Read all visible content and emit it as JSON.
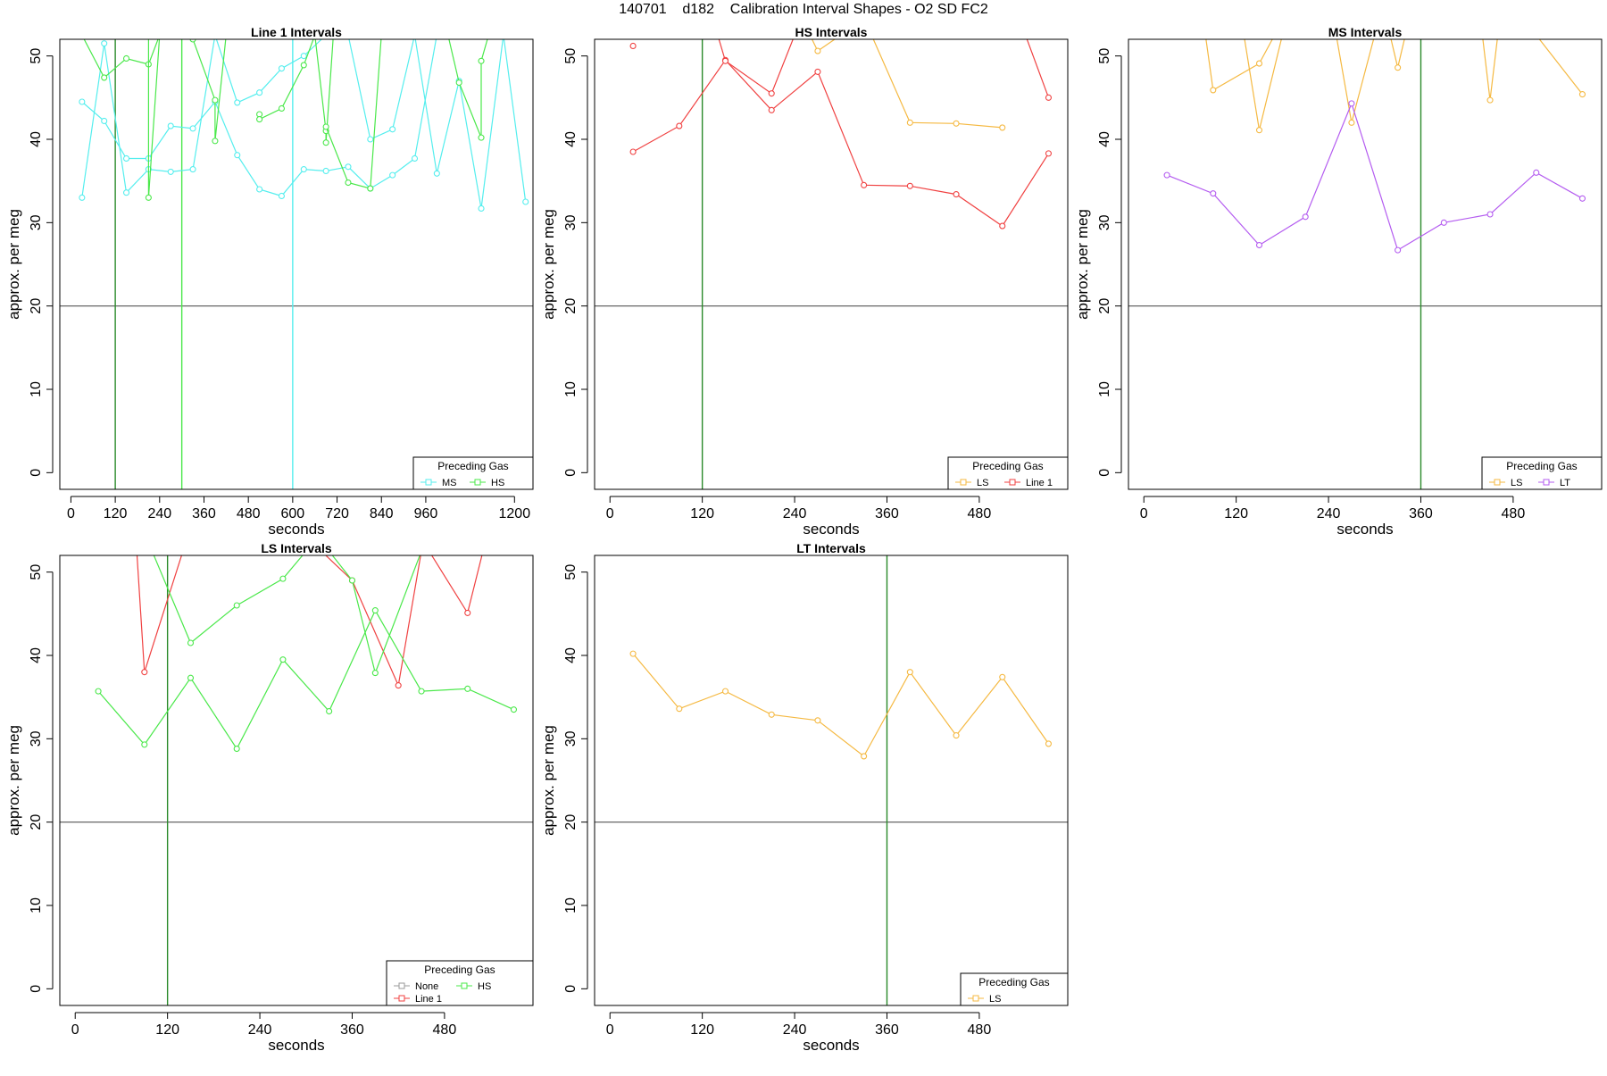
{
  "figure": {
    "title": "140701    d182    Calibration Interval Shapes - O2 SD FC2"
  },
  "colors": {
    "Line 1": "#f04141",
    "HS": "#4ae84a",
    "MS": "#55eeee",
    "LS": "#f5b942",
    "LT": "#b45cf0",
    "None": "#9a9a9a",
    "marker_line": "#2a8a2a",
    "hline": "#555555"
  },
  "chart_data": [
    {
      "type": "line",
      "title": "Line 1 Intervals",
      "xlabel": "seconds",
      "ylabel": "approx. per meg",
      "xlim": [
        -30,
        1250
      ],
      "ylim": [
        -2,
        52
      ],
      "xticks": [
        0,
        120,
        240,
        360,
        480,
        600,
        720,
        840,
        960,
        1200
      ],
      "yticks": [
        0,
        10,
        20,
        30,
        40,
        50
      ],
      "hline": 20,
      "vlines": [
        {
          "x": 120,
          "color": "#2a8a2a"
        },
        {
          "x": 300,
          "color": "#4ae84a"
        },
        {
          "x": 600,
          "color": "#55eeee"
        }
      ],
      "legend": {
        "title": "Preceding Gas",
        "position": "bottom-right",
        "entries": [
          "MS",
          "HS"
        ]
      },
      "series": [
        {
          "name": "MS",
          "points": [
            [
              30,
              44.5
            ],
            [
              90,
              42.2
            ],
            [
              150,
              37.7
            ],
            [
              210,
              37.7
            ],
            [
              270,
              41.6
            ],
            [
              330,
              41.3
            ],
            [
              390,
              44.5
            ],
            [
              450,
              38.1
            ],
            [
              510,
              34.0
            ],
            [
              570,
              33.2
            ],
            [
              630,
              36.4
            ],
            [
              690,
              36.2
            ],
            [
              750,
              36.7
            ],
            [
              810,
              34.1
            ],
            [
              870,
              35.7
            ],
            [
              930,
              37.7
            ],
            [
              990,
              52.5
            ],
            [
              1050,
              52.5
            ],
            [
              1110,
              52.5
            ],
            [
              1170,
              52.5
            ],
            [
              1230,
              52.5
            ]
          ]
        },
        {
          "name": "MS",
          "points": [
            [
              30,
              33.0
            ],
            [
              90,
              51.5
            ],
            [
              150,
              33.6
            ],
            [
              210,
              36.4
            ],
            [
              270,
              36.1
            ],
            [
              330,
              36.4
            ],
            [
              390,
              52.5
            ],
            [
              450,
              44.4
            ],
            [
              510,
              45.6
            ],
            [
              570,
              48.5
            ],
            [
              630,
              50.0
            ],
            [
              690,
              52.5
            ],
            [
              750,
              52.5
            ],
            [
              810,
              40.0
            ],
            [
              870,
              41.2
            ],
            [
              930,
              52.5
            ],
            [
              990,
              35.9
            ],
            [
              1050,
              47.0
            ],
            [
              1110,
              31.7
            ],
            [
              1170,
              52.5
            ],
            [
              1230,
              32.5
            ]
          ]
        },
        {
          "name": "HS",
          "points": [
            [
              30,
              52.5
            ],
            [
              90,
              47.4
            ],
            [
              150,
              49.7
            ],
            [
              210,
              49.0
            ],
            [
              240,
              52.5
            ]
          ]
        },
        {
          "name": "HS",
          "points": [
            [
              210,
              52.5
            ],
            [
              210,
              33.0
            ],
            [
              240,
              52.5
            ]
          ]
        },
        {
          "name": "HS",
          "points": [
            [
              330,
              52.0
            ],
            [
              390,
              44.7
            ],
            [
              390,
              39.8
            ],
            [
              420,
              52.5
            ]
          ]
        },
        {
          "name": "HS",
          "points": [
            [
              510,
              43.0
            ],
            [
              510,
              42.4
            ],
            [
              570,
              43.7
            ],
            [
              630,
              48.9
            ],
            [
              660,
              52.5
            ]
          ]
        },
        {
          "name": "HS",
          "points": [
            [
              660,
              52.5
            ],
            [
              690,
              41.0
            ],
            [
              690,
              39.6
            ],
            [
              710,
              52.5
            ]
          ]
        },
        {
          "name": "HS",
          "points": [
            [
              690,
              41.5
            ],
            [
              750,
              34.8
            ],
            [
              810,
              34.1
            ],
            [
              840,
              52.5
            ]
          ]
        },
        {
          "name": "HS",
          "points": [
            [
              1020,
              52.5
            ],
            [
              1050,
              46.8
            ],
            [
              1110,
              40.2
            ],
            [
              1110,
              49.4
            ],
            [
              1130,
              52.5
            ]
          ]
        }
      ]
    },
    {
      "type": "line",
      "title": "HS Intervals",
      "xlabel": "seconds",
      "ylabel": "approx. per meg",
      "xlim": [
        -20,
        595
      ],
      "ylim": [
        -2,
        52
      ],
      "xticks": [
        0,
        120,
        240,
        360,
        480
      ],
      "yticks": [
        0,
        10,
        20,
        30,
        40,
        50
      ],
      "hline": 20,
      "vlines": [
        {
          "x": 120,
          "color": "#2a8a2a"
        }
      ],
      "legend": {
        "title": "Preceding Gas",
        "position": "bottom-right",
        "entries": [
          "LS",
          "Line 1"
        ]
      },
      "series": [
        {
          "name": "LS",
          "points": [
            [
              260,
              52.5
            ],
            [
              270,
              50.6
            ],
            [
              300,
              52.5
            ]
          ]
        },
        {
          "name": "LS",
          "points": [
            [
              340,
              52.5
            ],
            [
              390,
              42.0
            ],
            [
              450,
              41.9
            ],
            [
              510,
              41.4
            ]
          ]
        },
        {
          "name": "Line 1",
          "points": [
            [
              30,
              38.5
            ],
            [
              90,
              41.6
            ],
            [
              150,
              49.5
            ],
            [
              210,
              43.5
            ],
            [
              270,
              48.1
            ],
            [
              330,
              34.5
            ],
            [
              390,
              34.4
            ],
            [
              450,
              33.4
            ],
            [
              510,
              29.6
            ],
            [
              570,
              38.3
            ]
          ]
        },
        {
          "name": "Line 1",
          "points": [
            [
              30,
              51.2
            ]
          ]
        },
        {
          "name": "Line 1",
          "points": [
            [
              140,
              52.5
            ],
            [
              150,
              49.4
            ],
            [
              210,
              45.5
            ],
            [
              240,
              52.5
            ]
          ]
        },
        {
          "name": "Line 1",
          "points": [
            [
              540,
              52.5
            ],
            [
              570,
              45.0
            ]
          ]
        }
      ]
    },
    {
      "type": "line",
      "title": "MS Intervals",
      "xlabel": "seconds",
      "ylabel": "approx. per meg",
      "xlim": [
        -20,
        595
      ],
      "ylim": [
        -2,
        52
      ],
      "xticks": [
        0,
        120,
        240,
        360,
        480
      ],
      "yticks": [
        0,
        10,
        20,
        30,
        40,
        50
      ],
      "hline": 20,
      "vlines": [
        {
          "x": 360,
          "color": "#2a8a2a"
        }
      ],
      "legend": {
        "title": "Preceding Gas",
        "position": "bottom-right",
        "entries": [
          "LS",
          "LT"
        ]
      },
      "series": [
        {
          "name": "LS",
          "points": [
            [
              80,
              52.5
            ],
            [
              90,
              45.9
            ],
            [
              150,
              49.1
            ],
            [
              170,
              52.5
            ]
          ]
        },
        {
          "name": "LS",
          "points": [
            [
              130,
              52.5
            ],
            [
              150,
              41.1
            ],
            [
              180,
              52.5
            ]
          ]
        },
        {
          "name": "LS",
          "points": [
            [
              250,
              52.5
            ],
            [
              270,
              42.0
            ],
            [
              300,
              52.5
            ]
          ]
        },
        {
          "name": "LS",
          "points": [
            [
              320,
              52.5
            ],
            [
              330,
              48.6
            ],
            [
              340,
              52.5
            ]
          ]
        },
        {
          "name": "LS",
          "points": [
            [
              440,
              52.5
            ],
            [
              450,
              44.7
            ],
            [
              460,
              52.5
            ]
          ]
        },
        {
          "name": "LS",
          "points": [
            [
              510,
              52.5
            ],
            [
              570,
              45.4
            ]
          ]
        },
        {
          "name": "LT",
          "points": [
            [
              30,
              35.7
            ],
            [
              90,
              33.5
            ],
            [
              150,
              27.3
            ],
            [
              210,
              30.7
            ],
            [
              270,
              44.3
            ],
            [
              330,
              26.7
            ],
            [
              390,
              30.0
            ],
            [
              450,
              31.0
            ],
            [
              510,
              36.0
            ],
            [
              570,
              32.9
            ]
          ]
        }
      ]
    },
    {
      "type": "line",
      "title": "LS Intervals",
      "xlabel": "seconds",
      "ylabel": "approx. per meg",
      "xlim": [
        -20,
        595
      ],
      "ylim": [
        -2,
        52
      ],
      "xticks": [
        0,
        120,
        240,
        360,
        480
      ],
      "yticks": [
        0,
        10,
        20,
        30,
        40,
        50
      ],
      "hline": 20,
      "vlines": [
        {
          "x": 120,
          "color": "#2a8a2a"
        }
      ],
      "legend": {
        "title": "Preceding Gas",
        "position": "bottom-right",
        "entries": [
          "None",
          "Line 1",
          "HS"
        ]
      },
      "series": [
        {
          "name": "Line 1",
          "points": [
            [
              80,
              52.5
            ],
            [
              90,
              38.0
            ],
            [
              140,
              52.5
            ]
          ]
        },
        {
          "name": "Line 1",
          "points": [
            [
              320,
              52.5
            ],
            [
              360,
              49.0
            ],
            [
              420,
              36.4
            ],
            [
              450,
              52.5
            ]
          ]
        },
        {
          "name": "Line 1",
          "points": [
            [
              460,
              52.5
            ],
            [
              510,
              45.1
            ],
            [
              530,
              52.5
            ]
          ]
        },
        {
          "name": "HS",
          "points": [
            [
              30,
              35.7
            ],
            [
              90,
              29.3
            ],
            [
              150,
              37.3
            ],
            [
              210,
              28.8
            ],
            [
              270,
              39.5
            ],
            [
              330,
              33.3
            ],
            [
              390,
              45.4
            ],
            [
              450,
              35.7
            ],
            [
              510,
              36.0
            ],
            [
              570,
              33.5
            ]
          ]
        },
        {
          "name": "HS",
          "points": [
            [
              100,
              52.5
            ],
            [
              150,
              41.5
            ],
            [
              210,
              46.0
            ],
            [
              270,
              49.2
            ],
            [
              300,
              52.5
            ]
          ]
        },
        {
          "name": "HS",
          "points": [
            [
              330,
              52.5
            ],
            [
              360,
              49.0
            ],
            [
              390,
              37.9
            ],
            [
              450,
              52.5
            ]
          ]
        }
      ]
    },
    {
      "type": "line",
      "title": "LT Intervals",
      "xlabel": "seconds",
      "ylabel": "approx. per meg",
      "xlim": [
        -20,
        595
      ],
      "ylim": [
        -2,
        52
      ],
      "xticks": [
        0,
        120,
        240,
        360,
        480
      ],
      "yticks": [
        0,
        10,
        20,
        30,
        40,
        50
      ],
      "hline": 20,
      "vlines": [
        {
          "x": 360,
          "color": "#2a8a2a"
        }
      ],
      "legend": {
        "title": "Preceding Gas",
        "position": "bottom-right",
        "entries": [
          "LS"
        ]
      },
      "series": [
        {
          "name": "LS",
          "points": [
            [
              30,
              40.2
            ],
            [
              90,
              33.6
            ],
            [
              150,
              35.7
            ],
            [
              210,
              32.9
            ],
            [
              270,
              32.2
            ],
            [
              330,
              27.9
            ],
            [
              390,
              38.0
            ],
            [
              450,
              30.4
            ],
            [
              510,
              37.4
            ],
            [
              570,
              29.4
            ]
          ]
        }
      ]
    }
  ]
}
